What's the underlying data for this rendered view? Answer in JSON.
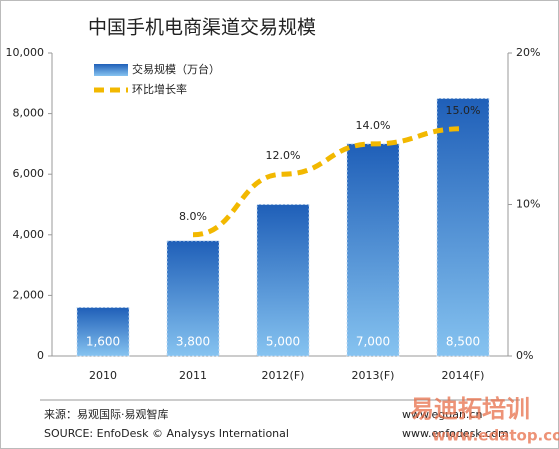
{
  "chart_data": {
    "type": "bar",
    "title": "中国手机电商渠道交易规模",
    "categories": [
      "2010",
      "2011",
      "2012(F)",
      "2013(F)",
      "2014(F)"
    ],
    "series": [
      {
        "name": "交易规模（万台）",
        "color": "#2a6fc4",
        "values": [
          1600,
          3800,
          5000,
          7000,
          8500
        ],
        "value_labels": [
          "1,600",
          "3,800",
          "5,000",
          "7,000",
          "8,500"
        ]
      },
      {
        "name": "环比增长率",
        "type": "line",
        "axis": "y2",
        "color": "#f2b800",
        "values": [
          null,
          8.0,
          12.0,
          14.0,
          15.0
        ],
        "value_labels": [
          null,
          "8.0%",
          "12.0%",
          "14.0%",
          "15.0%"
        ]
      }
    ],
    "ylim": [
      0,
      10000
    ],
    "yticks": [
      0,
      {
        "value": 2000,
        "label": "2,000"
      },
      {
        "value": 4000,
        "label": "4,000"
      },
      {
        "value": 6000,
        "label": "6,000"
      },
      {
        "value": 8000,
        "label": "8,000"
      },
      {
        "value": 10000,
        "label": "10,000"
      }
    ],
    "y2lim": [
      0,
      20
    ],
    "y2ticks": [
      {
        "value": 0,
        "label": "0%"
      },
      {
        "value": 10,
        "label": "10%"
      },
      {
        "value": 20,
        "label": "20%"
      }
    ],
    "legend": "upper-left",
    "source": [
      "来源：易观国际·易观智库",
      "SOURCE: EnfoDesk © Analysys International"
    ],
    "websites": [
      "www.eguan.cn",
      "www.enfodesk.com"
    ],
    "watermark": [
      "易迪拓培训",
      "www.edatop.com"
    ]
  }
}
